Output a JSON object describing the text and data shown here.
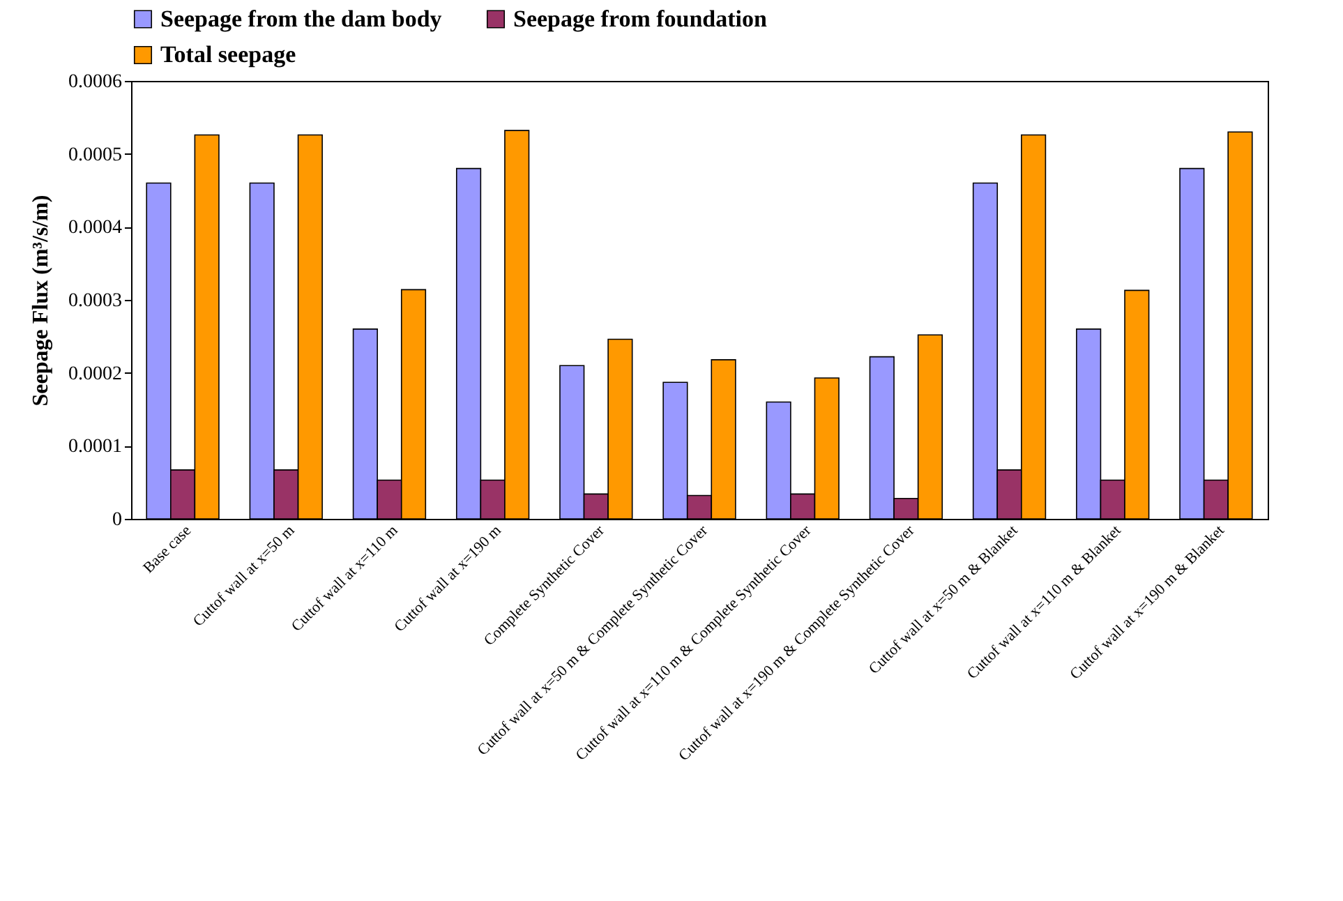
{
  "chart_data": {
    "type": "bar",
    "ylabel": "Seepage Flux (m³/s/m)",
    "categories": [
      "Base case",
      "Cuttof wall at x=50 m",
      "Cuttof wall at x=110 m",
      "Cuttof wall at x=190 m",
      "Complete Synthetic Cover",
      "Cuttof wall at x=50 m & Complete Synthetic Cover",
      "Cuttof wall at x=110 m & Complete Synthetic Cover",
      "Cuttof wall at x=190 m & Complete Synthetic Cover",
      "Cuttof wall at x=50 m & Blanket",
      "Cuttof wall at x=110 m & Blanket",
      "Cuttof wall at x=190 m & Blanket"
    ],
    "series": [
      {
        "name": "Seepage from the dam body",
        "color": "#9999ff",
        "values": [
          0.00046,
          0.00046,
          0.00026,
          0.00048,
          0.00021,
          0.000187,
          0.00016,
          0.000222,
          0.00046,
          0.00026,
          0.00048
        ]
      },
      {
        "name": "Seepage from foundation",
        "color": "#993366",
        "values": [
          6.7e-05,
          6.7e-05,
          5.3e-05,
          5.3e-05,
          3.4e-05,
          3.2e-05,
          3.4e-05,
          2.8e-05,
          6.7e-05,
          5.3e-05,
          5.3e-05
        ]
      },
      {
        "name": "Total seepage",
        "color": "#ff9900",
        "values": [
          0.000526,
          0.000526,
          0.000314,
          0.000532,
          0.000246,
          0.000218,
          0.000193,
          0.000252,
          0.000526,
          0.000313,
          0.00053
        ]
      }
    ],
    "ylim": [
      0,
      0.0006
    ],
    "yticks": [
      0,
      0.0001,
      0.0002,
      0.0003,
      0.0004,
      0.0005,
      0.0006
    ],
    "legend": "top"
  }
}
